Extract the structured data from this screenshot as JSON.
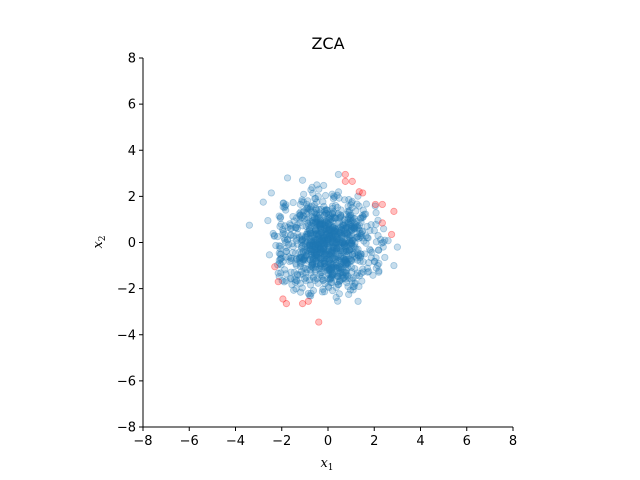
{
  "chart_data": {
    "type": "scatter",
    "title": "ZCA",
    "xlabel": {
      "var": "x",
      "sub": "1"
    },
    "ylabel": {
      "var": "x",
      "sub": "2"
    },
    "xlim": [
      -8,
      8
    ],
    "ylim": [
      -8,
      8
    ],
    "xticks": [
      -8,
      -6,
      -4,
      -2,
      0,
      2,
      4,
      6,
      8
    ],
    "yticks": [
      -8,
      -6,
      -4,
      -2,
      0,
      2,
      4,
      6,
      8
    ],
    "grid": false,
    "spines": [
      "left",
      "bottom"
    ],
    "series": [
      {
        "color": "#1f77b4",
        "alpha": 0.25,
        "distribution": {
          "kind": "isotropic-normal",
          "mean": [
            0,
            0
          ],
          "std": 1,
          "count": 1000
        },
        "points": [
          [
            -3.4,
            0.75
          ],
          [
            -2.8,
            1.75
          ],
          [
            -2.45,
            2.15
          ],
          [
            -1.75,
            2.8
          ],
          [
            -1.1,
            2.7
          ],
          [
            0.45,
            2.95
          ],
          [
            1.3,
            -2.55
          ],
          [
            -0.8,
            -2.3
          ],
          [
            2.85,
            -1.0
          ],
          [
            -2.6,
            0.95
          ],
          [
            3.0,
            -0.2
          ]
        ]
      },
      {
        "color": "#ff0000",
        "alpha": 0.25,
        "points": [
          [
            0.75,
            2.95
          ],
          [
            0.75,
            2.65
          ],
          [
            1.05,
            2.65
          ],
          [
            1.35,
            2.2
          ],
          [
            1.5,
            2.15
          ],
          [
            2.05,
            1.65
          ],
          [
            2.35,
            1.65
          ],
          [
            2.85,
            1.35
          ],
          [
            2.35,
            0.85
          ],
          [
            2.75,
            0.35
          ],
          [
            -2.3,
            -1.05
          ],
          [
            -2.15,
            -1.7
          ],
          [
            -1.95,
            -2.45
          ],
          [
            -1.8,
            -2.65
          ],
          [
            -1.1,
            -2.65
          ],
          [
            -0.85,
            -2.55
          ],
          [
            -0.4,
            -3.45
          ]
        ]
      }
    ]
  }
}
